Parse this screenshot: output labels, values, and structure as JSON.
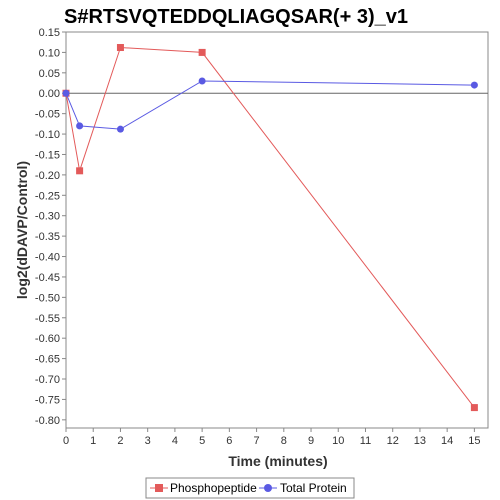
{
  "chart_data": {
    "type": "line",
    "title": "S#RTSVQTEDDQLIAGQSAR(+ 3)_v1",
    "xlabel": "Time (minutes)",
    "ylabel": "log2(dDAVP/Control)",
    "xlim": [
      0,
      15.5
    ],
    "ylim": [
      -0.82,
      0.15
    ],
    "x_ticks": [
      0,
      1,
      2,
      3,
      4,
      5,
      6,
      7,
      8,
      9,
      10,
      11,
      12,
      13,
      14,
      15
    ],
    "y_ticks": [
      "0.15",
      "0.10",
      "0.05",
      "0.00",
      "-0.05",
      "-0.10",
      "-0.15",
      "-0.20",
      "-0.25",
      "-0.30",
      "-0.35",
      "-0.40",
      "-0.45",
      "-0.50",
      "-0.55",
      "-0.60",
      "-0.65",
      "-0.70",
      "-0.75",
      "-0.80"
    ],
    "zero_line": true,
    "grid": false,
    "legend_position": "bottom",
    "series": [
      {
        "name": "Phosphopeptide",
        "color": "#e35a5a",
        "marker": "square",
        "x": [
          0,
          0.5,
          2,
          5,
          15
        ],
        "y": [
          0.0,
          -0.19,
          0.112,
          0.1,
          -0.77
        ]
      },
      {
        "name": "Total Protein",
        "color": "#5a5ae3",
        "marker": "circle",
        "x": [
          0,
          0.5,
          2,
          5,
          15
        ],
        "y": [
          0.0,
          -0.08,
          -0.088,
          0.03,
          0.02
        ]
      }
    ]
  }
}
